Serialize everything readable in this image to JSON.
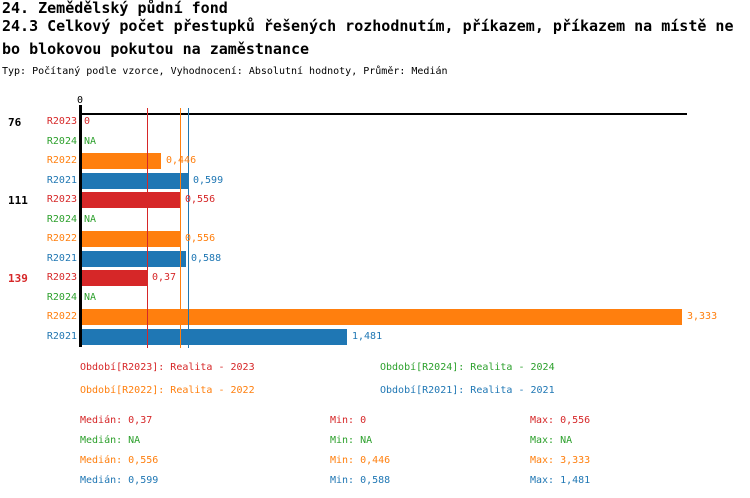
{
  "header": {
    "title": "24. Zemědělský půdní fond",
    "subtitle_line1": "24.3 Celkový počet přestupků řešených rozhodnutím, příkazem, příkazem na místě ne",
    "subtitle_line2": "bo blokovou pokutou na zaměstnance",
    "meta": "Typ: Počítaný podle vzorce, Vyhodnocení: Absolutní hodnoty, Průměr: Medián"
  },
  "chart_data": {
    "type": "bar",
    "orientation": "horizontal",
    "axis": {
      "tick_label": "0",
      "x_min": 0,
      "x_max": 3.36
    },
    "grid": "off",
    "series_colors": {
      "R2023": "#d62728",
      "R2024": "#2ca02c",
      "R2022": "#ff7f0e",
      "R2021": "#1f77b4"
    },
    "groups": [
      {
        "label": "76",
        "label_color": "#000000",
        "bars": [
          {
            "series": "R2023",
            "value": 0,
            "display": "0"
          },
          {
            "series": "R2024",
            "value": null,
            "display": "NA"
          },
          {
            "series": "R2022",
            "value": 0.446,
            "display": "0,446"
          },
          {
            "series": "R2021",
            "value": 0.599,
            "display": "0,599"
          }
        ]
      },
      {
        "label": "111",
        "label_color": "#000000",
        "bars": [
          {
            "series": "R2023",
            "value": 0.556,
            "display": "0,556"
          },
          {
            "series": "R2024",
            "value": null,
            "display": "NA"
          },
          {
            "series": "R2022",
            "value": 0.556,
            "display": "0,556"
          },
          {
            "series": "R2021",
            "value": 0.588,
            "display": "0,588"
          }
        ]
      },
      {
        "label": "139",
        "label_color": "#d62728",
        "bars": [
          {
            "series": "R2023",
            "value": 0.37,
            "display": "0,37"
          },
          {
            "series": "R2024",
            "value": null,
            "display": "NA"
          },
          {
            "series": "R2022",
            "value": 3.333,
            "display": "3,333"
          },
          {
            "series": "R2021",
            "value": 1.481,
            "display": "1,481"
          }
        ]
      }
    ],
    "median_lines": [
      {
        "series": "R2023",
        "value": 0.37
      },
      {
        "series": "R2022",
        "value": 0.556
      },
      {
        "series": "R2021",
        "value": 0.599
      }
    ],
    "legend": [
      {
        "series": "R2023",
        "label": "Období[R2023]: Realita - 2023"
      },
      {
        "series": "R2024",
        "label": "Období[R2024]: Realita - 2024"
      },
      {
        "series": "R2022",
        "label": "Období[R2022]: Realita - 2022"
      },
      {
        "series": "R2021",
        "label": "Období[R2021]: Realita - 2021"
      }
    ],
    "stats": {
      "labels": {
        "median": "Medián",
        "min": "Min",
        "max": "Max"
      },
      "rows": [
        {
          "series": "R2023",
          "median": "0,37",
          "min": "0",
          "max": "0,556"
        },
        {
          "series": "R2024",
          "median": "NA",
          "min": "NA",
          "max": "NA"
        },
        {
          "series": "R2022",
          "median": "0,556",
          "min": "0,446",
          "max": "3,333"
        },
        {
          "series": "R2021",
          "median": "0,599",
          "min": "0,588",
          "max": "1,481"
        }
      ]
    }
  }
}
